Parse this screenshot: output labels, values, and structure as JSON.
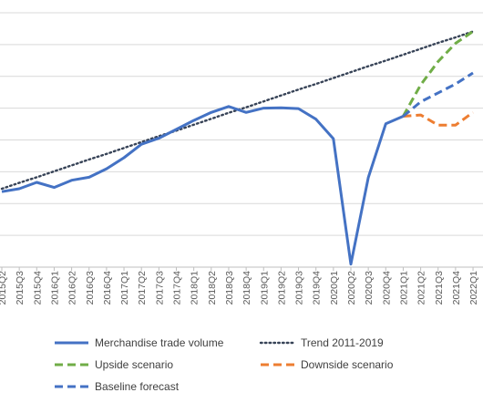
{
  "chart_data": {
    "type": "line",
    "title": "",
    "xlabel": "",
    "ylabel": "",
    "grid": true,
    "legend_placement": "bottom",
    "categories": [
      "2015Q2",
      "2015Q3",
      "2015Q4",
      "2016Q1",
      "2016Q2",
      "2016Q3",
      "2016Q4",
      "2017Q1",
      "2017Q2",
      "2017Q3",
      "2017Q4",
      "2018Q1",
      "2018Q2",
      "2018Q3",
      "2018Q4",
      "2019Q1",
      "2019Q2",
      "2019Q3",
      "2019Q4",
      "2020Q1",
      "2020Q2",
      "2020Q3",
      "2020Q4",
      "2021Q1",
      "2021Q2",
      "2021Q3",
      "2021Q4",
      "2022Q1"
    ],
    "series": [
      {
        "name": "Merchandise trade volume",
        "color": "#4472c4",
        "style": "solid",
        "values": [
          97.8,
          98.5,
          100.0,
          98.8,
          100.5,
          101.2,
          103.2,
          105.8,
          109.0,
          110.4,
          112.5,
          114.6,
          116.5,
          117.9,
          116.5,
          117.5,
          117.6,
          117.4,
          114.9,
          110.3,
          80.7,
          101.1,
          113.8,
          115.6,
          null,
          null,
          null,
          null
        ]
      },
      {
        "name": "Trend 2011-2019",
        "color": "#374357",
        "style": "dotted",
        "values": [
          98.5,
          99.9,
          101.2,
          102.6,
          104.0,
          105.4,
          106.7,
          108.1,
          109.5,
          110.9,
          112.2,
          113.6,
          115.0,
          116.4,
          117.7,
          119.1,
          120.5,
          121.9,
          123.2,
          124.6,
          126.0,
          127.4,
          128.7,
          130.1,
          131.5,
          132.9,
          134.2,
          135.6
        ]
      },
      {
        "name": "Upside scenario",
        "color": "#70ad47",
        "style": "dashed",
        "values": [
          null,
          null,
          null,
          null,
          null,
          null,
          null,
          null,
          null,
          null,
          null,
          null,
          null,
          null,
          null,
          null,
          null,
          null,
          null,
          null,
          null,
          null,
          null,
          115.6,
          123.0,
          128.5,
          132.8,
          135.6
        ]
      },
      {
        "name": "Downside scenario",
        "color": "#ed7d31",
        "style": "dashed",
        "values": [
          null,
          null,
          null,
          null,
          null,
          null,
          null,
          null,
          null,
          null,
          null,
          null,
          null,
          null,
          null,
          null,
          null,
          null,
          null,
          null,
          null,
          null,
          null,
          115.6,
          115.9,
          113.5,
          113.5,
          116.5
        ]
      },
      {
        "name": "Baseline forecast",
        "color": "#4472c4",
        "style": "dashed",
        "values": [
          null,
          null,
          null,
          null,
          null,
          null,
          null,
          null,
          null,
          null,
          null,
          null,
          null,
          null,
          null,
          null,
          null,
          null,
          null,
          null,
          null,
          null,
          null,
          115.6,
          119.0,
          121.1,
          123.2,
          125.8
        ]
      }
    ],
    "legend": [
      {
        "label": "Merchandise trade volume",
        "series": 0
      },
      {
        "label": "Trend 2011-2019",
        "series": 1
      },
      {
        "label": "Upside scenario",
        "series": 2
      },
      {
        "label": "Downside scenario",
        "series": 3
      },
      {
        "label": "Baseline forecast",
        "series": 4
      }
    ]
  }
}
